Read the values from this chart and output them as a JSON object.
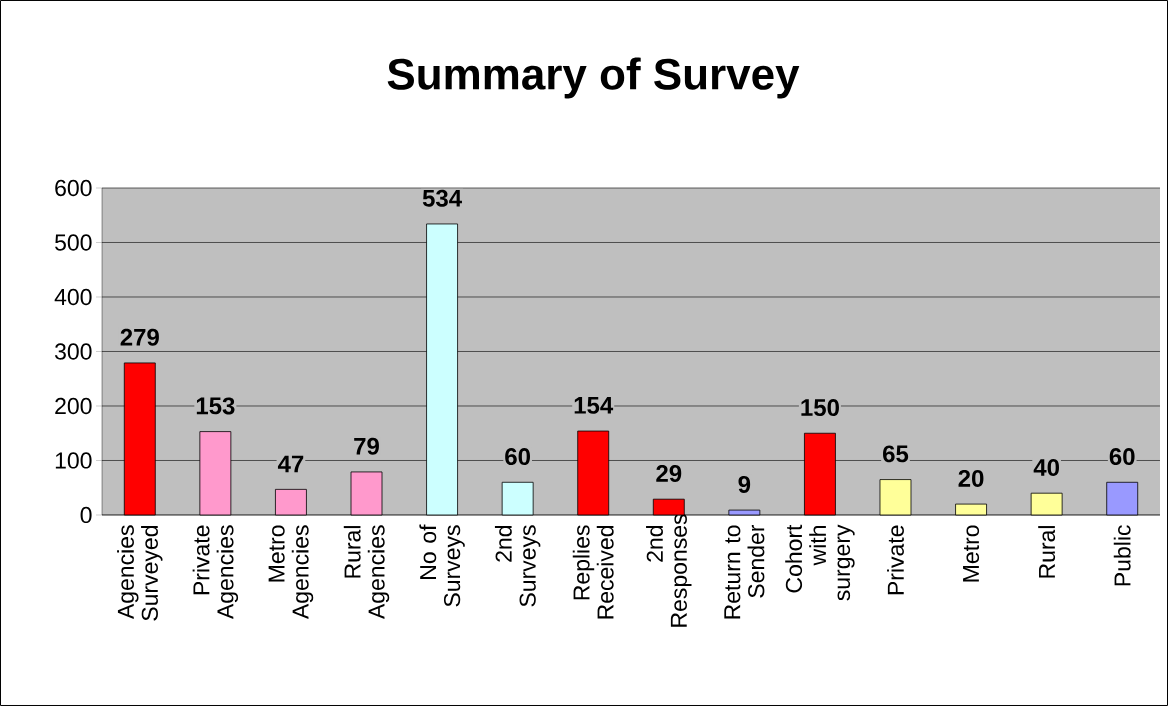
{
  "chart_data": {
    "type": "bar",
    "title": "Summary of Survey",
    "categories": [
      "Agencies Surveyed",
      "Private Agencies",
      "Metro Agencies",
      "Rural Agencies",
      "No of Surveys",
      "2nd Surveys",
      "Replies Received",
      "2nd Responses",
      "Return to Sender",
      "Cohort with surgery",
      "Private",
      "Metro",
      "Rural",
      "Public"
    ],
    "values": [
      279,
      153,
      47,
      79,
      534,
      60,
      154,
      29,
      9,
      150,
      65,
      20,
      40,
      60
    ],
    "colors": [
      "#ff0000",
      "#ff99cc",
      "#ff99cc",
      "#ff99cc",
      "#ccffff",
      "#ccffff",
      "#ff0000",
      "#ff0000",
      "#9999ff",
      "#ff0000",
      "#ffff99",
      "#ffff99",
      "#ffff99",
      "#9999ff"
    ],
    "ylim": [
      0,
      600
    ],
    "yticks": [
      0,
      100,
      200,
      300,
      400,
      500,
      600
    ],
    "grid": "y",
    "data_labels": true
  }
}
